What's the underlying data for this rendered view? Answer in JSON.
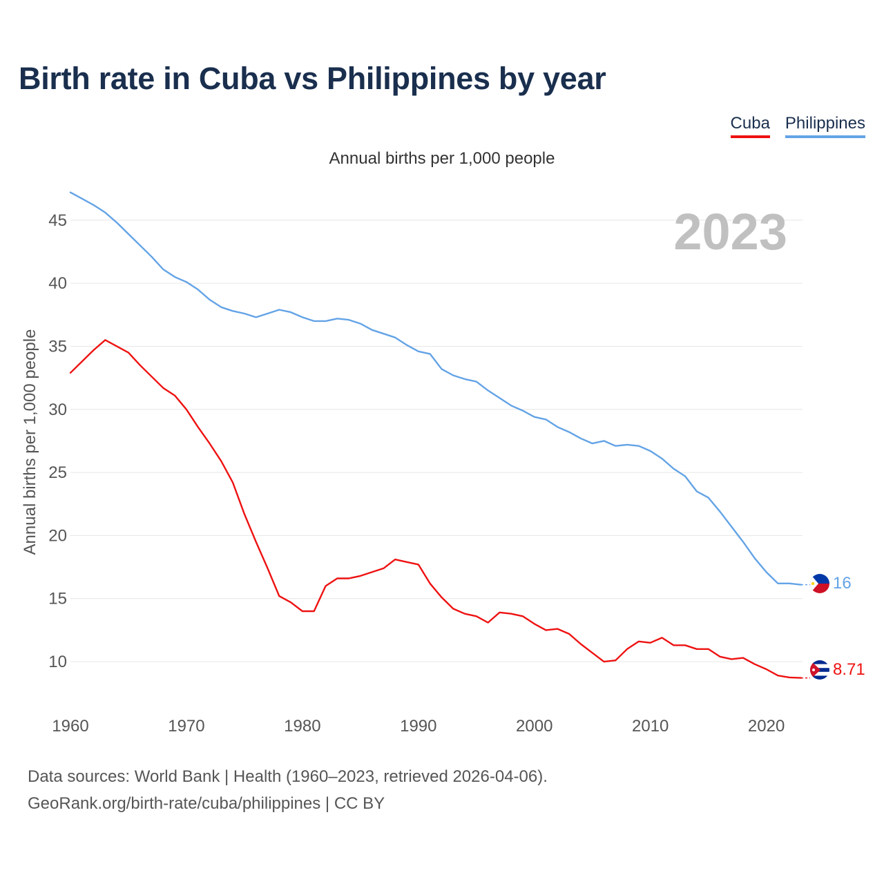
{
  "title": "Birth rate in Cuba vs Philippines by year",
  "legend": [
    {
      "label": "Cuba",
      "color": "#ee1111"
    },
    {
      "label": "Philippines",
      "color": "#63a3e6"
    }
  ],
  "subtitle": "Annual births per 1,000 people",
  "year_display": "2023",
  "source": {
    "line1": "Data sources: World Bank | Health (1960–2023, retrieved 2026-04-06).",
    "line2": "GeoRank.org/birth-rate/cuba/philippines | CC BY"
  },
  "chart_data": {
    "type": "line",
    "title": "Birth rate in Cuba vs Philippines by year",
    "xlabel": "",
    "ylabel": "Annual births per 1,000 people",
    "xlim": [
      1960,
      2023
    ],
    "ylim": [
      6.5,
      48
    ],
    "x_ticks": [
      1960,
      1970,
      1980,
      1990,
      2000,
      2010,
      2020
    ],
    "y_ticks": [
      10,
      15,
      20,
      25,
      30,
      35,
      40,
      45
    ],
    "grid": true,
    "x": [
      1960,
      1961,
      1962,
      1963,
      1964,
      1965,
      1966,
      1967,
      1968,
      1969,
      1970,
      1971,
      1972,
      1973,
      1974,
      1975,
      1976,
      1977,
      1978,
      1979,
      1980,
      1981,
      1982,
      1983,
      1984,
      1985,
      1986,
      1987,
      1988,
      1989,
      1990,
      1991,
      1992,
      1993,
      1994,
      1995,
      1996,
      1997,
      1998,
      1999,
      2000,
      2001,
      2002,
      2003,
      2004,
      2005,
      2006,
      2007,
      2008,
      2009,
      2010,
      2011,
      2012,
      2013,
      2014,
      2015,
      2016,
      2017,
      2018,
      2019,
      2020,
      2021,
      2022,
      2023
    ],
    "series": [
      {
        "name": "Cuba",
        "color": "#ee1111",
        "end_label": "8.71",
        "values": [
          32.9,
          33.8,
          34.7,
          35.5,
          35.0,
          34.5,
          33.5,
          32.6,
          31.7,
          31.1,
          30.0,
          28.6,
          27.3,
          25.9,
          24.2,
          21.7,
          19.5,
          17.4,
          15.2,
          14.7,
          14.0,
          14.0,
          16.0,
          16.6,
          16.6,
          16.8,
          17.1,
          17.4,
          18.1,
          17.9,
          17.7,
          16.2,
          15.1,
          14.2,
          13.8,
          13.6,
          13.1,
          13.9,
          13.8,
          13.6,
          13.0,
          12.5,
          12.6,
          12.2,
          11.4,
          10.7,
          10.0,
          10.1,
          11.0,
          11.6,
          11.5,
          11.9,
          11.3,
          11.3,
          11.0,
          11.0,
          10.4,
          10.2,
          10.3,
          9.8,
          9.4,
          8.9,
          8.75,
          8.71
        ]
      },
      {
        "name": "Philippines",
        "color": "#63a3e6",
        "end_label": "16",
        "values": [
          47.2,
          46.7,
          46.2,
          45.6,
          44.8,
          43.9,
          43.0,
          42.1,
          41.1,
          40.5,
          40.1,
          39.5,
          38.7,
          38.1,
          37.8,
          37.6,
          37.3,
          37.6,
          37.9,
          37.7,
          37.3,
          37.0,
          37.0,
          37.2,
          37.1,
          36.8,
          36.3,
          36.0,
          35.7,
          35.1,
          34.6,
          34.4,
          33.2,
          32.7,
          32.4,
          32.2,
          31.5,
          30.9,
          30.3,
          29.9,
          29.4,
          29.2,
          28.6,
          28.2,
          27.7,
          27.3,
          27.5,
          27.1,
          27.2,
          27.1,
          26.7,
          26.1,
          25.3,
          24.7,
          23.5,
          23.0,
          21.9,
          20.7,
          19.5,
          18.2,
          17.1,
          16.2,
          16.2,
          16.1
        ]
      }
    ]
  }
}
